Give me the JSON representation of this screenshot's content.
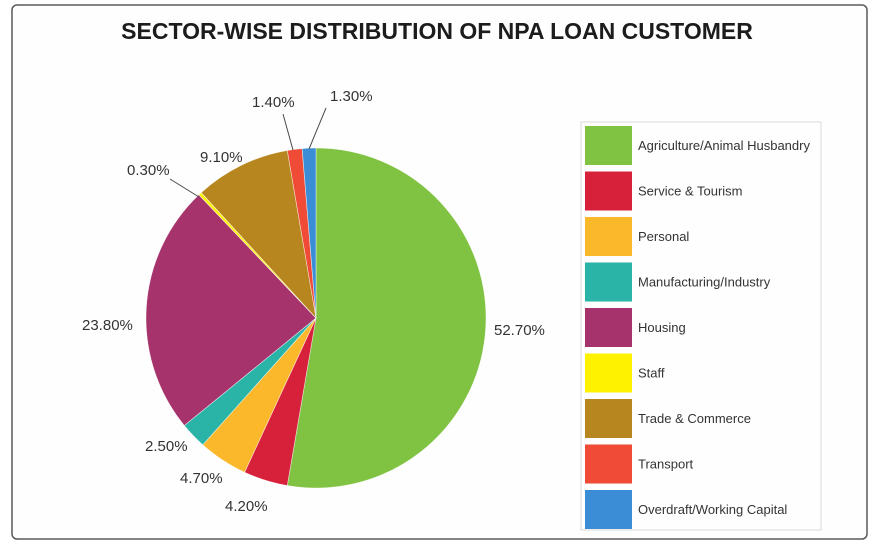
{
  "chart_data": {
    "type": "pie",
    "title": "SECTOR-WISE DISTRIBUTION OF NPA LOAN CUSTOMER",
    "categories": [
      "Agriculture/Animal Husbandry",
      "Service & Tourism",
      "Personal",
      "Manufacturing/Industry",
      "Housing",
      "Staff",
      "Trade & Commerce",
      "Transport",
      "Overdraft/Working Capital"
    ],
    "values": [
      52.7,
      4.2,
      4.7,
      2.5,
      23.8,
      0.3,
      9.1,
      1.4,
      1.3
    ],
    "data_labels": [
      "52.70%",
      "4.20%",
      "4.70%",
      "2.50%",
      "23.80%",
      "0.30%",
      "9.10%",
      "1.40%",
      "1.30%"
    ],
    "colors": [
      "#80c241",
      "#d7213a",
      "#fbb82a",
      "#2ab3a7",
      "#a6336c",
      "#fff200",
      "#b8861f",
      "#ef4b36",
      "#3b8ed5"
    ],
    "legend": "right"
  }
}
